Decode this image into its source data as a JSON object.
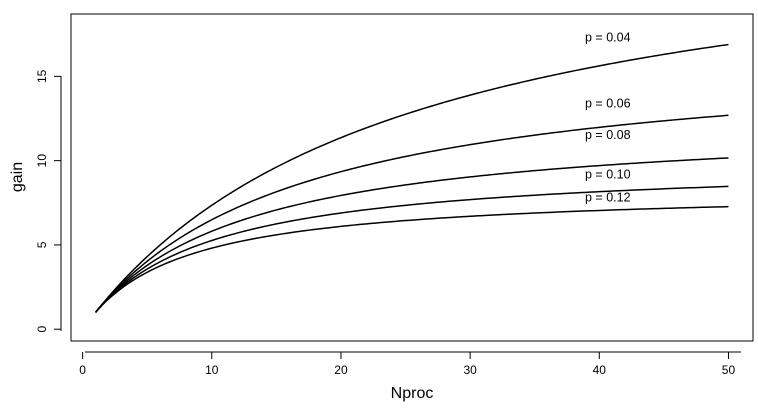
{
  "chart_data": {
    "type": "line",
    "title": "",
    "xlabel": "Nproc",
    "ylabel": "gain",
    "xlim": [
      -0.9,
      51.9
    ],
    "ylim": [
      -0.7,
      18.7
    ],
    "xticks": [
      0,
      10,
      20,
      30,
      40,
      50
    ],
    "yticks": [
      0,
      5,
      10,
      15
    ],
    "grid": false,
    "legend": "none",
    "line_color": "#000000",
    "series": [
      {
        "name": "p = 0.04",
        "x": [
          1,
          2,
          3,
          5,
          7,
          10,
          15,
          20,
          25,
          30,
          35,
          40,
          45,
          50
        ],
        "values": [
          1.0,
          1.92,
          2.78,
          4.31,
          5.65,
          7.35,
          9.62,
          11.36,
          12.76,
          13.89,
          14.83,
          15.63,
          16.3,
          16.89
        ]
      },
      {
        "name": "p = 0.06",
        "x": [
          1,
          2,
          3,
          5,
          7,
          10,
          15,
          20,
          25,
          30,
          35,
          40,
          45,
          50
        ],
        "values": [
          1.0,
          1.89,
          2.68,
          4.03,
          5.15,
          6.49,
          8.15,
          9.35,
          10.25,
          10.95,
          11.51,
          11.98,
          12.36,
          12.69
        ]
      },
      {
        "name": "p = 0.08",
        "x": [
          1,
          2,
          3,
          5,
          7,
          10,
          15,
          20,
          25,
          30,
          35,
          40,
          45,
          50
        ],
        "values": [
          1.0,
          1.85,
          2.59,
          3.79,
          4.73,
          5.81,
          7.08,
          7.94,
          8.56,
          9.04,
          9.41,
          9.71,
          9.95,
          10.16
        ]
      },
      {
        "name": "p = 0.10",
        "x": [
          1,
          2,
          3,
          5,
          7,
          10,
          15,
          20,
          25,
          30,
          35,
          40,
          45,
          50
        ],
        "values": [
          1.0,
          1.82,
          2.5,
          3.57,
          4.38,
          5.26,
          6.25,
          6.9,
          7.35,
          7.69,
          7.95,
          8.16,
          8.33,
          8.47
        ]
      },
      {
        "name": "p = 0.12",
        "x": [
          1,
          2,
          3,
          5,
          7,
          10,
          15,
          20,
          25,
          30,
          35,
          40,
          45,
          50
        ],
        "values": [
          1.0,
          1.79,
          2.42,
          3.38,
          4.07,
          4.81,
          5.6,
          6.1,
          6.44,
          6.7,
          6.89,
          7.04,
          7.17,
          7.27
        ]
      }
    ]
  }
}
